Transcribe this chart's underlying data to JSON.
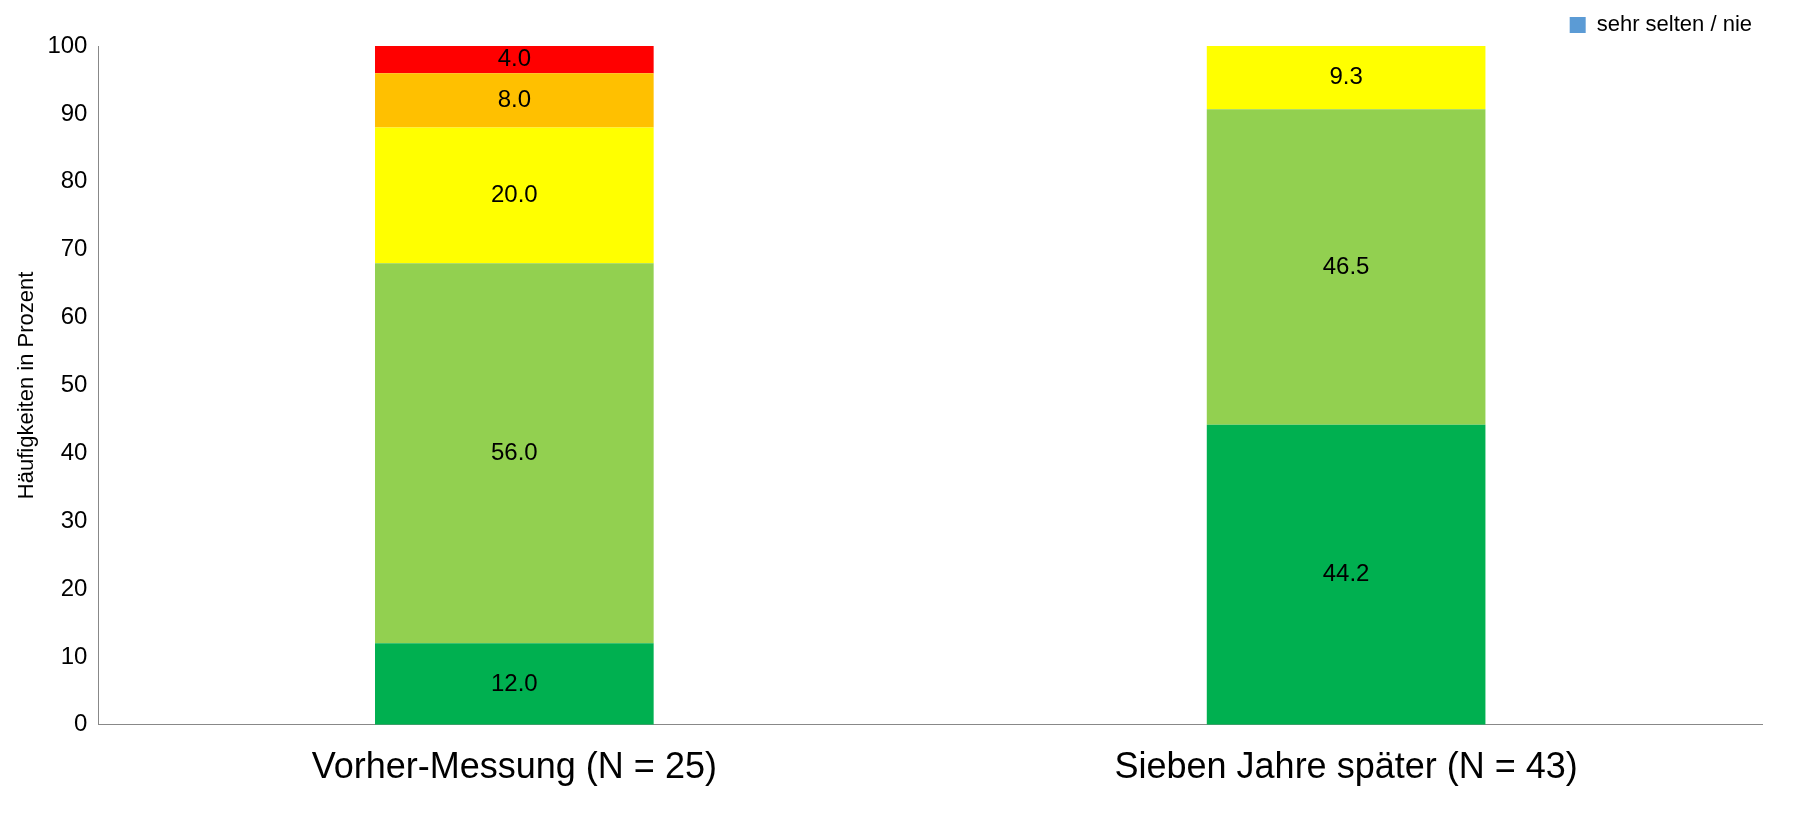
{
  "chart_data": {
    "type": "bar",
    "stacked": true,
    "ylabel": "Häufigkeiten in Prozent",
    "categories": [
      "Vorher-Messung (N = 25)",
      "Sieben Jahre später (N = 43)"
    ],
    "series": [
      {
        "color": "#00b050",
        "values": [
          12.0,
          44.2
        ],
        "value_labels": [
          "12.0",
          "44.2"
        ]
      },
      {
        "color": "#92d050",
        "values": [
          56.0,
          46.5
        ],
        "value_labels": [
          "56.0",
          "46.5"
        ]
      },
      {
        "color": "#ffff00",
        "values": [
          20.0,
          9.3
        ],
        "value_labels": [
          "20.0",
          "9.3"
        ]
      },
      {
        "color": "#ffc000",
        "values": [
          8.0,
          null
        ],
        "value_labels": [
          "8.0",
          null
        ]
      },
      {
        "color": "#ff0000",
        "values": [
          4.0,
          null
        ],
        "value_labels": [
          "4.0",
          null
        ]
      },
      {
        "name": "sehr selten / nie",
        "color": "#5b9bd5",
        "values": [
          null,
          null
        ]
      }
    ],
    "ylim": [
      0,
      100
    ],
    "yticks": [
      0,
      10,
      20,
      30,
      40,
      50,
      60,
      70,
      80,
      90,
      100
    ],
    "grid": false,
    "legend": "top right"
  }
}
